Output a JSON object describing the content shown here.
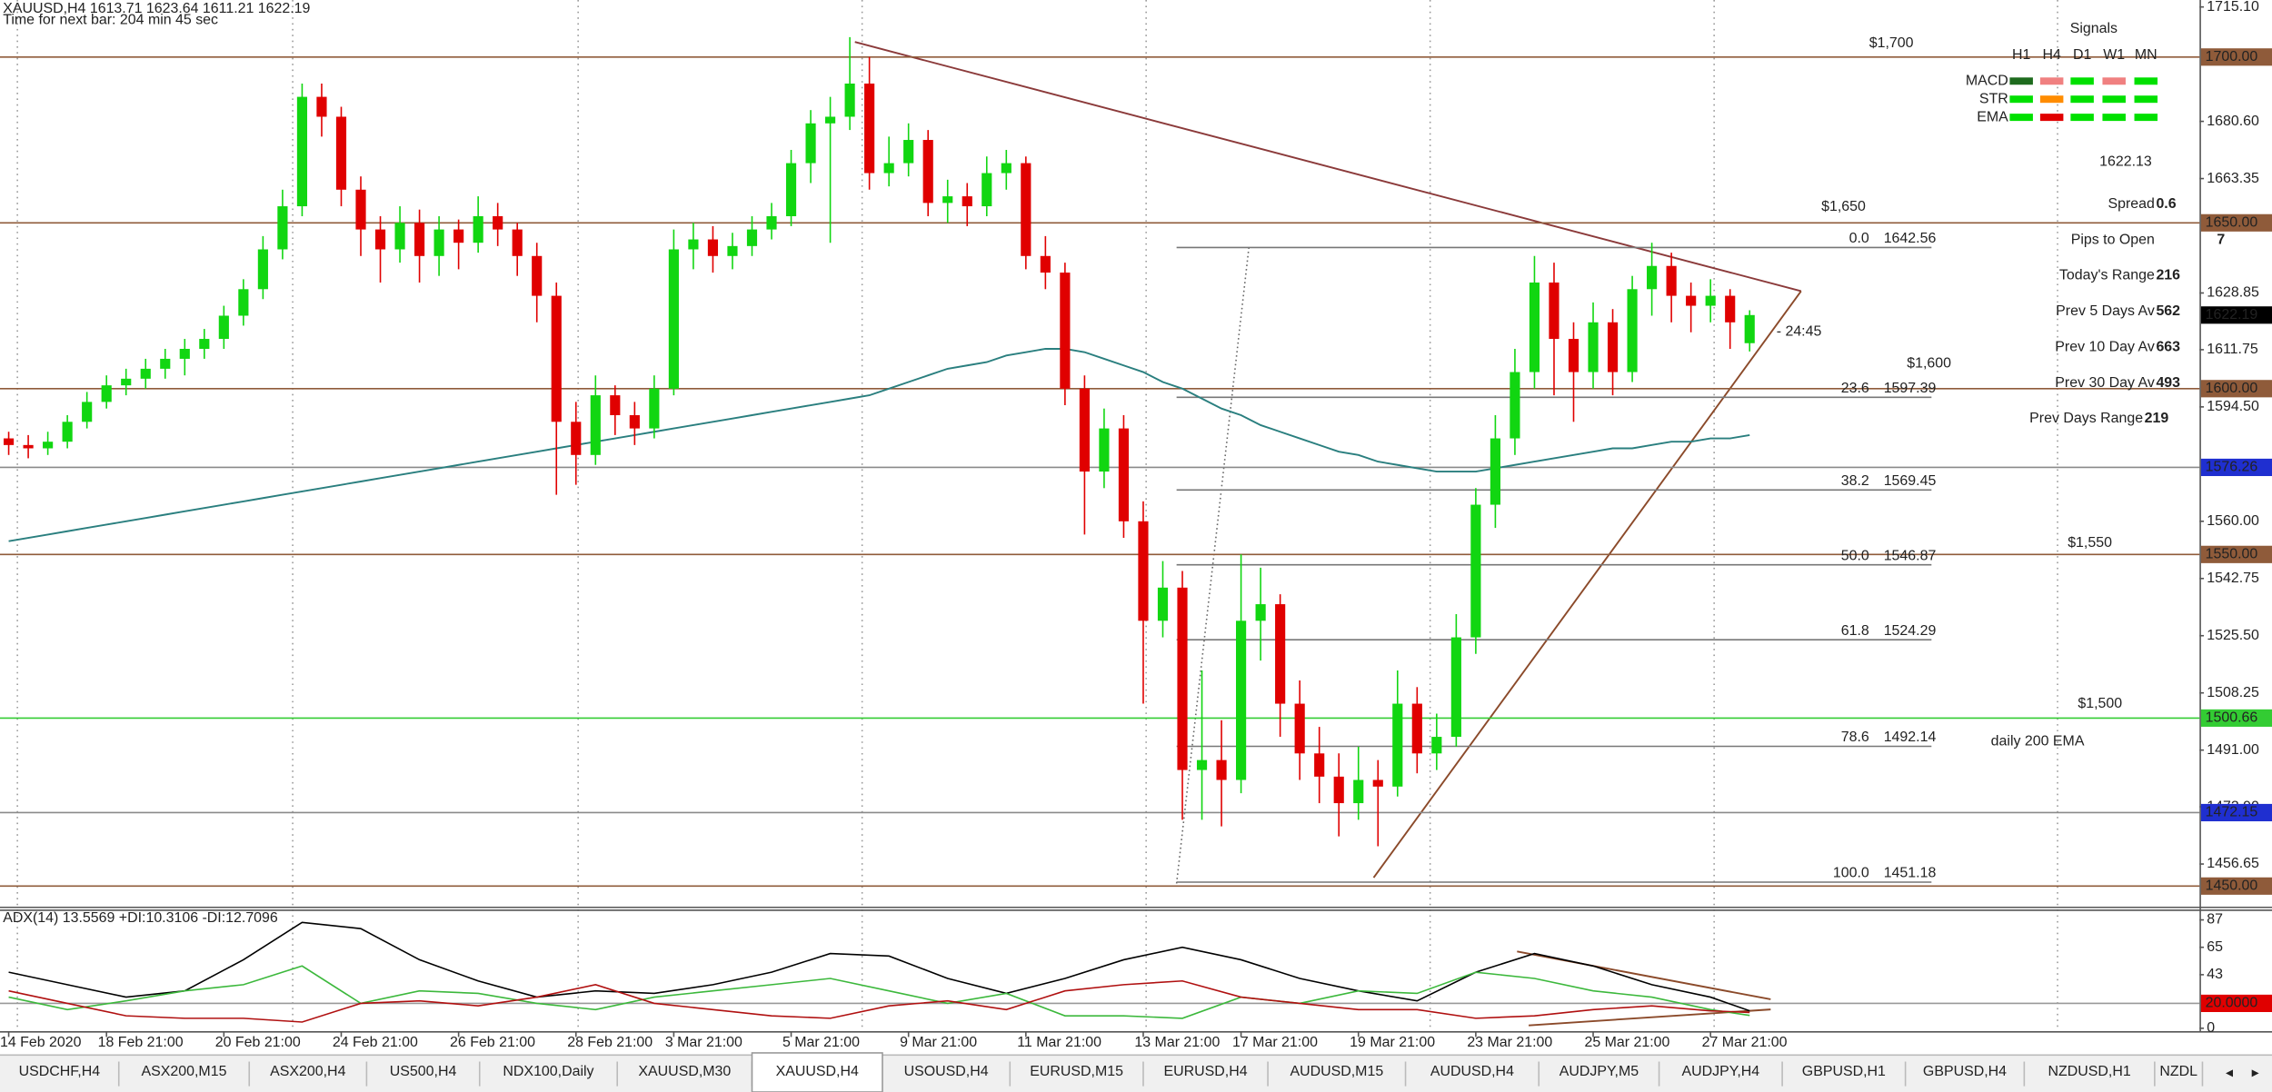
{
  "header": {
    "symbol_line": "XAUUSD,H4  1613.71 1623.64 1611.21 1622.19",
    "timer": "Time for next bar: 204 min 45 sec"
  },
  "chart_data": {
    "type": "candlestick",
    "ylim": [
      1443.8,
      1717.2
    ],
    "yticks": [
      {
        "value": 1715.1,
        "label": "1715.10"
      },
      {
        "value": 1680.6,
        "label": "1680.60"
      },
      {
        "value": 1663.35,
        "label": "1663.35"
      },
      {
        "value": 1628.85,
        "label": "1628.85"
      },
      {
        "value": 1611.75,
        "label": "1611.75"
      },
      {
        "value": 1594.5,
        "label": "1594.50"
      },
      {
        "value": 1560,
        "label": "1560.00"
      },
      {
        "value": 1542.75,
        "label": "1542.75"
      },
      {
        "value": 1525.5,
        "label": "1525.50"
      },
      {
        "value": 1508.25,
        "label": "1508.25"
      },
      {
        "value": 1491,
        "label": "1491.00"
      },
      {
        "value": 1473.9,
        "label": "1473.90"
      },
      {
        "value": 1456.65,
        "label": "1456.65"
      }
    ],
    "categories": [
      "14 Feb 2020",
      null,
      null,
      null,
      null,
      "18 Feb 21:00",
      null,
      null,
      null,
      null,
      null,
      "20 Feb 21:00",
      null,
      null,
      null,
      null,
      null,
      "24 Feb 21:00",
      null,
      null,
      null,
      null,
      null,
      "26 Feb 21:00",
      null,
      null,
      null,
      null,
      null,
      "28 Feb 21:00",
      null,
      null,
      null,
      null,
      "3 Mar 21:00",
      null,
      null,
      null,
      null,
      null,
      "5 Mar 21:00",
      null,
      null,
      null,
      null,
      null,
      "9 Mar 21:00",
      null,
      null,
      null,
      null,
      null,
      "11 Mar 21:00",
      null,
      null,
      null,
      null,
      null,
      "13 Mar 21:00",
      null,
      null,
      null,
      null,
      "17 Mar 21:00",
      null,
      null,
      null,
      null,
      null,
      "19 Mar 21:00",
      null,
      null,
      null,
      null,
      null,
      "23 Mar 21:00",
      null,
      null,
      null,
      null,
      null,
      "25 Mar 21:00",
      null,
      null,
      null,
      null,
      null,
      "27 Mar 21:00",
      null,
      null
    ],
    "up_color": "#11d611",
    "down_color": "#e00000",
    "candles": [
      [
        1585,
        1587,
        1580,
        1583
      ],
      [
        1583,
        1586,
        1579,
        1582
      ],
      [
        1582,
        1587,
        1580,
        1584
      ],
      [
        1584,
        1592,
        1582,
        1590
      ],
      [
        1590,
        1599,
        1588,
        1596
      ],
      [
        1596,
        1604,
        1594,
        1601
      ],
      [
        1601,
        1606,
        1598,
        1603
      ],
      [
        1603,
        1609,
        1600,
        1606
      ],
      [
        1606,
        1612,
        1603,
        1609
      ],
      [
        1609,
        1615,
        1604,
        1612
      ],
      [
        1612,
        1618,
        1609,
        1615
      ],
      [
        1615,
        1625,
        1612,
        1622
      ],
      [
        1622,
        1633,
        1619,
        1630
      ],
      [
        1630,
        1646,
        1627,
        1642
      ],
      [
        1642,
        1660,
        1639,
        1655
      ],
      [
        1655,
        1692,
        1652,
        1688
      ],
      [
        1688,
        1692,
        1676,
        1682
      ],
      [
        1682,
        1685,
        1655,
        1660
      ],
      [
        1660,
        1664,
        1640,
        1648
      ],
      [
        1648,
        1652,
        1632,
        1642
      ],
      [
        1642,
        1655,
        1638,
        1650
      ],
      [
        1650,
        1654,
        1632,
        1640
      ],
      [
        1640,
        1652,
        1634,
        1648
      ],
      [
        1648,
        1651,
        1636,
        1644
      ],
      [
        1644,
        1658,
        1641,
        1652
      ],
      [
        1652,
        1656,
        1643,
        1648
      ],
      [
        1648,
        1650,
        1634,
        1640
      ],
      [
        1640,
        1644,
        1620,
        1628
      ],
      [
        1628,
        1632,
        1568,
        1590
      ],
      [
        1590,
        1596,
        1571,
        1580
      ],
      [
        1580,
        1604,
        1577,
        1598
      ],
      [
        1598,
        1601,
        1586,
        1592
      ],
      [
        1592,
        1596,
        1583,
        1588
      ],
      [
        1588,
        1604,
        1585,
        1600
      ],
      [
        1600,
        1648,
        1598,
        1642
      ],
      [
        1642,
        1650,
        1636,
        1645
      ],
      [
        1645,
        1649,
        1635,
        1640
      ],
      [
        1640,
        1647,
        1636,
        1643
      ],
      [
        1643,
        1652,
        1640,
        1648
      ],
      [
        1648,
        1656,
        1645,
        1652
      ],
      [
        1652,
        1672,
        1649,
        1668
      ],
      [
        1668,
        1684,
        1662,
        1680
      ],
      [
        1680,
        1688,
        1644,
        1682
      ],
      [
        1682,
        1706,
        1678,
        1692
      ],
      [
        1692,
        1700,
        1660,
        1665
      ],
      [
        1665,
        1676,
        1661,
        1668
      ],
      [
        1668,
        1680,
        1664,
        1675
      ],
      [
        1675,
        1678,
        1652,
        1656
      ],
      [
        1656,
        1663,
        1650,
        1658
      ],
      [
        1658,
        1662,
        1649,
        1655
      ],
      [
        1655,
        1670,
        1652,
        1665
      ],
      [
        1665,
        1672,
        1660,
        1668
      ],
      [
        1668,
        1670,
        1636,
        1640
      ],
      [
        1640,
        1646,
        1630,
        1635
      ],
      [
        1635,
        1638,
        1595,
        1600
      ],
      [
        1600,
        1604,
        1556,
        1575
      ],
      [
        1575,
        1594,
        1570,
        1588
      ],
      [
        1588,
        1592,
        1555,
        1560
      ],
      [
        1560,
        1566,
        1505,
        1530
      ],
      [
        1530,
        1548,
        1525,
        1540
      ],
      [
        1540,
        1545,
        1470,
        1485
      ],
      [
        1485,
        1515,
        1470,
        1488
      ],
      [
        1488,
        1500,
        1468,
        1482
      ],
      [
        1482,
        1550,
        1478,
        1530
      ],
      [
        1530,
        1546,
        1518,
        1535
      ],
      [
        1535,
        1538,
        1495,
        1505
      ],
      [
        1505,
        1512,
        1482,
        1490
      ],
      [
        1490,
        1498,
        1475,
        1483
      ],
      [
        1483,
        1490,
        1465,
        1475
      ],
      [
        1475,
        1492,
        1470,
        1482
      ],
      [
        1482,
        1488,
        1462,
        1480
      ],
      [
        1480,
        1515,
        1477,
        1505
      ],
      [
        1505,
        1510,
        1484,
        1490
      ],
      [
        1490,
        1502,
        1485,
        1495
      ],
      [
        1495,
        1532,
        1492,
        1525
      ],
      [
        1525,
        1570,
        1520,
        1565
      ],
      [
        1565,
        1592,
        1558,
        1585
      ],
      [
        1585,
        1612,
        1580,
        1605
      ],
      [
        1605,
        1640,
        1600,
        1632
      ],
      [
        1632,
        1638,
        1598,
        1615
      ],
      [
        1615,
        1620,
        1590,
        1605
      ],
      [
        1605,
        1626,
        1600,
        1620
      ],
      [
        1620,
        1624,
        1598,
        1605
      ],
      [
        1605,
        1634,
        1602,
        1630
      ],
      [
        1630,
        1644,
        1622,
        1637
      ],
      [
        1637,
        1641,
        1620,
        1628
      ],
      [
        1628,
        1632,
        1617,
        1625
      ],
      [
        1625,
        1633,
        1620,
        1628
      ],
      [
        1628,
        1630,
        1612,
        1620
      ],
      [
        1613.71,
        1623.64,
        1611.21,
        1622.19
      ]
    ],
    "ma_color": "#2a7f7f",
    "ma": [
      1554,
      1555,
      1556,
      1557,
      1558,
      1559,
      1560,
      1561,
      1562,
      1563,
      1564,
      1565,
      1566,
      1567,
      1568,
      1569,
      1570,
      1571,
      1572,
      1573,
      1574,
      1575,
      1576,
      1577,
      1578,
      1579,
      1580,
      1581,
      1582,
      1583,
      1584,
      1585,
      1586,
      1587,
      1588,
      1589,
      1590,
      1591,
      1592,
      1593,
      1594,
      1595,
      1596,
      1597,
      1598,
      1600,
      1602,
      1604,
      1606,
      1607,
      1608,
      1610,
      1611,
      1612,
      1612,
      1611,
      1609,
      1607,
      1605,
      1602,
      1600,
      1597,
      1594,
      1592,
      1589,
      1587,
      1585,
      1583,
      1581,
      1580,
      1578,
      1577,
      1576,
      1575,
      1575,
      1575,
      1576,
      1577,
      1578,
      1579,
      1580,
      1581,
      1582,
      1582,
      1583,
      1584,
      1584,
      1585,
      1585,
      1586
    ],
    "levels": [
      {
        "value": 1700,
        "label": "1700.00",
        "color": "#8f5b3a"
      },
      {
        "value": 1650,
        "label": "1650.00",
        "color": "#8f5b3a"
      },
      {
        "value": 1600,
        "label": "1600.00",
        "color": "#8f5b3a"
      },
      {
        "value": 1576.26,
        "label": "1576.26",
        "color": "#1f2fd0"
      },
      {
        "value": 1550,
        "label": "1550.00",
        "color": "#8f5b3a"
      },
      {
        "value": 1500.66,
        "label": "1500.66",
        "color": "#33cc33"
      },
      {
        "value": 1472.15,
        "label": "1472.15",
        "color": "#1f2fd0"
      },
      {
        "value": 1450,
        "label": "1450.00",
        "color": "#8f5b3a"
      }
    ],
    "fib": [
      {
        "level": "0.0",
        "price": 1642.56
      },
      {
        "level": "23.6",
        "price": 1597.39
      },
      {
        "level": "38.2",
        "price": 1569.45
      },
      {
        "level": "50.0",
        "price": 1546.87
      },
      {
        "level": "61.8",
        "price": 1524.29
      },
      {
        "level": "78.6",
        "price": 1492.14
      },
      {
        "level": "100.0",
        "price": 1451.18
      }
    ],
    "annotations": [
      "$1,700",
      "$1,650",
      "$1,600",
      "$1,550",
      "$1,500",
      "daily 200 EMA"
    ],
    "countdown": "- 24:45",
    "adx": {
      "title": "ADX(14) 13.5569 +DI:10.3106 -DI:12.7096",
      "ylim": [
        0,
        93
      ],
      "yticks": [
        87,
        65,
        43,
        0
      ],
      "level": {
        "value": 20,
        "label": "20.0000"
      },
      "index": [
        0,
        3,
        6,
        9,
        12,
        15,
        18,
        21,
        24,
        27,
        30,
        33,
        36,
        39,
        42,
        45,
        48,
        51,
        54,
        57,
        60,
        63,
        66,
        69,
        72,
        75,
        78,
        81,
        84,
        87,
        89
      ],
      "series": [
        {
          "color": "#000000",
          "values": [
            45,
            35,
            25,
            30,
            55,
            85,
            80,
            55,
            38,
            25,
            30,
            28,
            35,
            45,
            60,
            58,
            40,
            28,
            40,
            55,
            65,
            55,
            40,
            30,
            22,
            45,
            60,
            50,
            35,
            25,
            14
          ]
        },
        {
          "color": "#3cb83c",
          "values": [
            25,
            15,
            22,
            30,
            35,
            50,
            20,
            30,
            28,
            20,
            15,
            25,
            30,
            35,
            40,
            30,
            20,
            28,
            10,
            10,
            8,
            25,
            20,
            30,
            28,
            45,
            40,
            30,
            25,
            15,
            10.31
          ]
        },
        {
          "color": "#b01010",
          "values": [
            30,
            20,
            10,
            8,
            8,
            5,
            20,
            22,
            18,
            25,
            35,
            20,
            15,
            10,
            8,
            18,
            22,
            15,
            30,
            35,
            38,
            25,
            20,
            15,
            15,
            8,
            10,
            15,
            18,
            14,
            12.71
          ]
        }
      ]
    }
  },
  "signals": {
    "title": "Signals",
    "columns": [
      "H1",
      "H4",
      "D1",
      "W1",
      "MN"
    ],
    "rows": [
      {
        "name": "MACD",
        "colors": [
          "#1e6b1e",
          "#f08080",
          "#00e000",
          "#f08080",
          "#00e000"
        ]
      },
      {
        "name": "STR",
        "colors": [
          "#00e000",
          "#ff8c00",
          "#00e000",
          "#00e000",
          "#00e000"
        ]
      },
      {
        "name": "EMA",
        "colors": [
          "#00e000",
          "#e00000",
          "#00e000",
          "#00e000",
          "#00e000"
        ]
      }
    ]
  },
  "info": {
    "price": 1622.13,
    "rows": [
      {
        "label": "Spread",
        "value": 0.6,
        "color": "#ff8c00"
      },
      {
        "label": "Pips to Open",
        "value": 7,
        "color": "#22aa22"
      },
      {
        "label": "Today's Range",
        "value": 216,
        "color": "#118811"
      },
      {
        "label": "Prev 5 Days Av",
        "value": 562,
        "color": "#118811"
      },
      {
        "label": "Prev 10 Day Av",
        "value": 663,
        "color": "#118811"
      },
      {
        "label": "Prev 30 Day Av",
        "value": 493,
        "color": "#118811"
      },
      {
        "label": "Prev Days Range",
        "value": 219,
        "color": "#118811"
      }
    ]
  },
  "tabs": [
    {
      "label": "USDCHF,H4",
      "active": false
    },
    {
      "label": "ASX200,M15",
      "active": false
    },
    {
      "label": "ASX200,H4",
      "active": false
    },
    {
      "label": "US500,H4",
      "active": false
    },
    {
      "label": "NDX100,Daily",
      "active": false
    },
    {
      "label": "XAUUSD,M30",
      "active": false
    },
    {
      "label": "XAUUSD,H4",
      "active": true
    },
    {
      "label": "USOUSD,H4",
      "active": false
    },
    {
      "label": "EURUSD,M15",
      "active": false
    },
    {
      "label": "EURUSD,H4",
      "active": false
    },
    {
      "label": "AUDUSD,M15",
      "active": false
    },
    {
      "label": "AUDUSD,H4",
      "active": false
    },
    {
      "label": "AUDJPY,M5",
      "active": false
    },
    {
      "label": "AUDJPY,H4",
      "active": false
    },
    {
      "label": "GBPUSD,H1",
      "active": false
    },
    {
      "label": "GBPUSD,H4",
      "active": false
    },
    {
      "label": "NZDUSD,H1",
      "active": false
    },
    {
      "label": "NZDL",
      "active": false
    }
  ]
}
